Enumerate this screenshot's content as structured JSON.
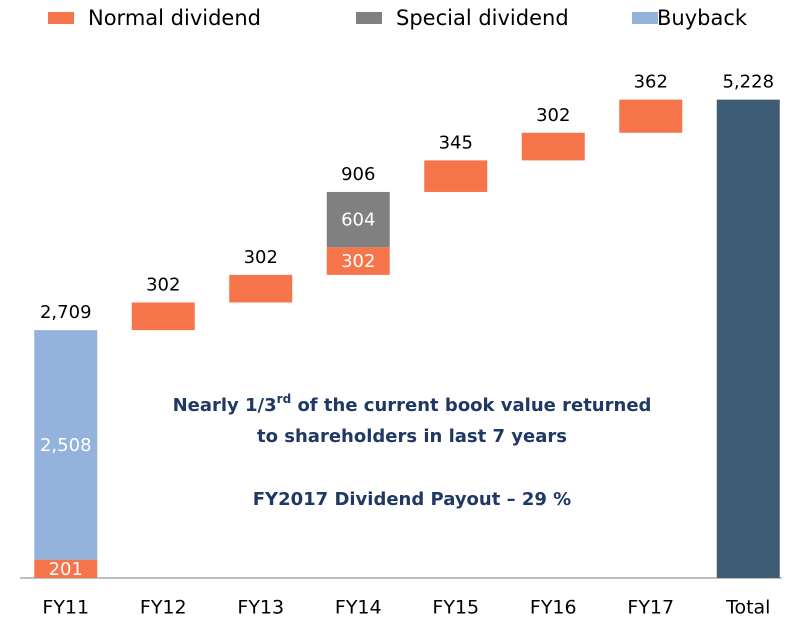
{
  "chart_data": {
    "type": "waterfall",
    "categories": [
      "FY11",
      "FY12",
      "FY13",
      "FY14",
      "FY15",
      "FY16",
      "FY17",
      "Total"
    ],
    "series": [
      {
        "name": "Normal dividend",
        "color": "#f7754b",
        "values": [
          201,
          302,
          302,
          302,
          345,
          302,
          362,
          null
        ]
      },
      {
        "name": "Special dividend",
        "color": "#808080",
        "values": [
          null,
          null,
          null,
          604,
          null,
          null,
          null,
          null
        ]
      },
      {
        "name": "Buyback",
        "color": "#93b3dd",
        "values": [
          2508,
          null,
          null,
          null,
          null,
          null,
          null,
          null
        ],
        "value_labels": [
          "2,508",
          null,
          null,
          null,
          null,
          null,
          null,
          null
        ]
      }
    ],
    "bar_totals": [
      {
        "value": 2709,
        "label": "2,709"
      },
      null,
      null,
      906,
      null,
      null,
      null,
      null
    ],
    "total": {
      "value": 5228,
      "label": "5,228",
      "color": "#3e5c74"
    },
    "ylim": [
      0,
      6000
    ],
    "annotation": {
      "line1": [
        "Nearly 1/3",
        "rd",
        " of the current book value returned"
      ],
      "line2": "to shareholders in last 7 years",
      "line3": "FY2017 Dividend Payout – 29 %"
    }
  }
}
